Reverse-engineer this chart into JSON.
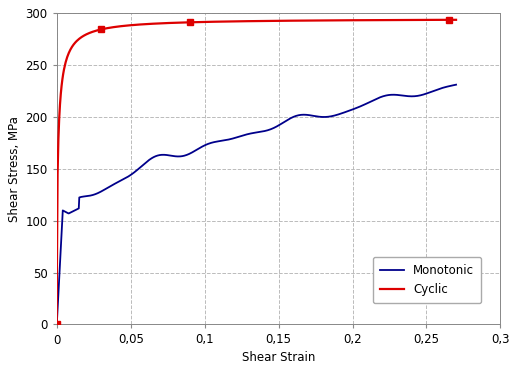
{
  "title": "",
  "xlabel": "Shear Strain",
  "ylabel": "Shear Stress, MPa",
  "xlim": [
    0,
    0.3
  ],
  "ylim": [
    0,
    300
  ],
  "xticks": [
    0,
    0.05,
    0.1,
    0.15,
    0.2,
    0.25,
    0.3
  ],
  "yticks": [
    0,
    50,
    100,
    150,
    200,
    250,
    300
  ],
  "xtick_labels": [
    "0",
    "0,05",
    "0,1",
    "0,15",
    "0,2",
    "0,25",
    "0,3"
  ],
  "ytick_labels": [
    "0",
    "50",
    "100",
    "150",
    "200",
    "250",
    "300"
  ],
  "cyclic_color": "#dd0000",
  "monotonic_color": "#00008b",
  "background_color": "#ffffff",
  "grid_color": "#bbbbbb",
  "legend_labels": [
    "Cyclic",
    "Monotonic"
  ],
  "font_size": 8.5
}
